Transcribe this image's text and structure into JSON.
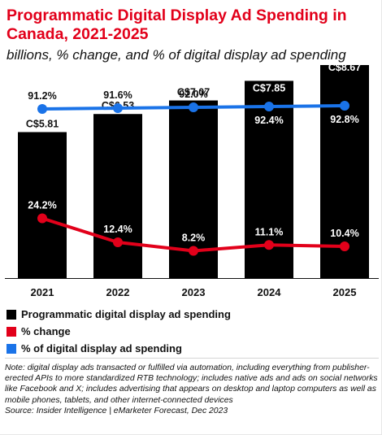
{
  "header": {
    "title": "Programmatic Digital Display Ad Spending in Canada, 2021-2025",
    "subtitle": "billions, % change, and % of digital display ad spending"
  },
  "chart_data": {
    "type": "bar",
    "categories": [
      "2021",
      "2022",
      "2023",
      "2024",
      "2025"
    ],
    "series": [
      {
        "name": "Programmatic digital display ad spending",
        "type": "bar",
        "values": [
          5.81,
          6.53,
          7.07,
          7.85,
          8.67
        ],
        "labels": [
          "C$5.81",
          "C$6.53",
          "C$7.07",
          "C$7.85",
          "C$8.67"
        ],
        "color": "#000000"
      },
      {
        "name": "% change",
        "type": "line",
        "values": [
          24.2,
          12.4,
          8.2,
          11.1,
          10.4
        ],
        "labels": [
          "24.2%",
          "12.4%",
          "8.2%",
          "11.1%",
          "10.4%"
        ],
        "color": "#e2001a"
      },
      {
        "name": "% of digital display ad spending",
        "type": "line",
        "values": [
          91.2,
          91.6,
          92.0,
          92.4,
          92.8
        ],
        "labels": [
          "91.2%",
          "91.6%",
          "92.0%",
          "92.4%",
          "92.8%"
        ],
        "color": "#1a73e8"
      }
    ],
    "ylim_bars": [
      0,
      9
    ],
    "legend_position": "bottom-left"
  },
  "legend": [
    {
      "label": "Programmatic digital display ad spending",
      "color": "#000000"
    },
    {
      "label": "% change",
      "color": "#e2001a"
    },
    {
      "label": "% of digital display ad spending",
      "color": "#1a73e8"
    }
  ],
  "footnote": {
    "note": "Note: digital display ads transacted or fulfilled via automation, including everything from publisher-erected APIs to more standardized RTB technology; includes native ads and ads on social networks like Facebook and X; includes advertising that appears on desktop and laptop computers as well as mobile phones, tablets, and other internet-connected devices",
    "source": "Source: Insider Intelligence | eMarketer Forecast, Dec 2023"
  }
}
